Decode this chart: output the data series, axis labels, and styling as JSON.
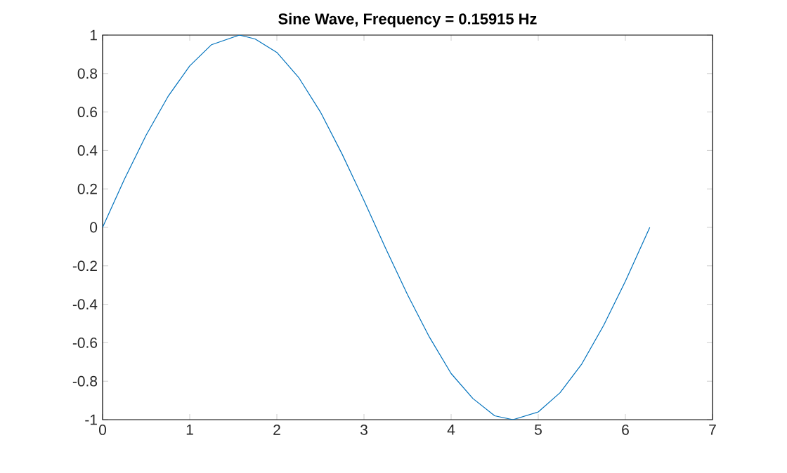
{
  "chart_data": {
    "type": "line",
    "title": "Sine Wave, Frequency = 0.15915 Hz",
    "series": [
      {
        "color": "#0072bd",
        "x": [
          0,
          0.25,
          0.5,
          0.75,
          1,
          1.25,
          1.57,
          1.75,
          2,
          2.25,
          2.5,
          2.75,
          3,
          3.25,
          3.5,
          3.75,
          4,
          4.25,
          4.5,
          4.71,
          5,
          5.25,
          5.5,
          5.75,
          6,
          6.28
        ],
        "values": [
          0,
          0.25,
          0.48,
          0.68,
          0.84,
          0.95,
          1.0,
          0.98,
          0.91,
          0.78,
          0.6,
          0.38,
          0.14,
          -0.11,
          -0.35,
          -0.57,
          -0.76,
          -0.89,
          -0.98,
          -1.0,
          -0.96,
          -0.86,
          -0.71,
          -0.51,
          -0.28,
          0
        ]
      }
    ],
    "xlim": [
      0,
      7
    ],
    "ylim": [
      -1,
      1
    ],
    "xticks": [
      0,
      1,
      2,
      3,
      4,
      5,
      6,
      7
    ],
    "yticks": [
      -1,
      -0.8,
      -0.6,
      -0.4,
      -0.2,
      0,
      0.2,
      0.4,
      0.6,
      0.8,
      1
    ],
    "marker": "none",
    "line_style": "solid"
  }
}
